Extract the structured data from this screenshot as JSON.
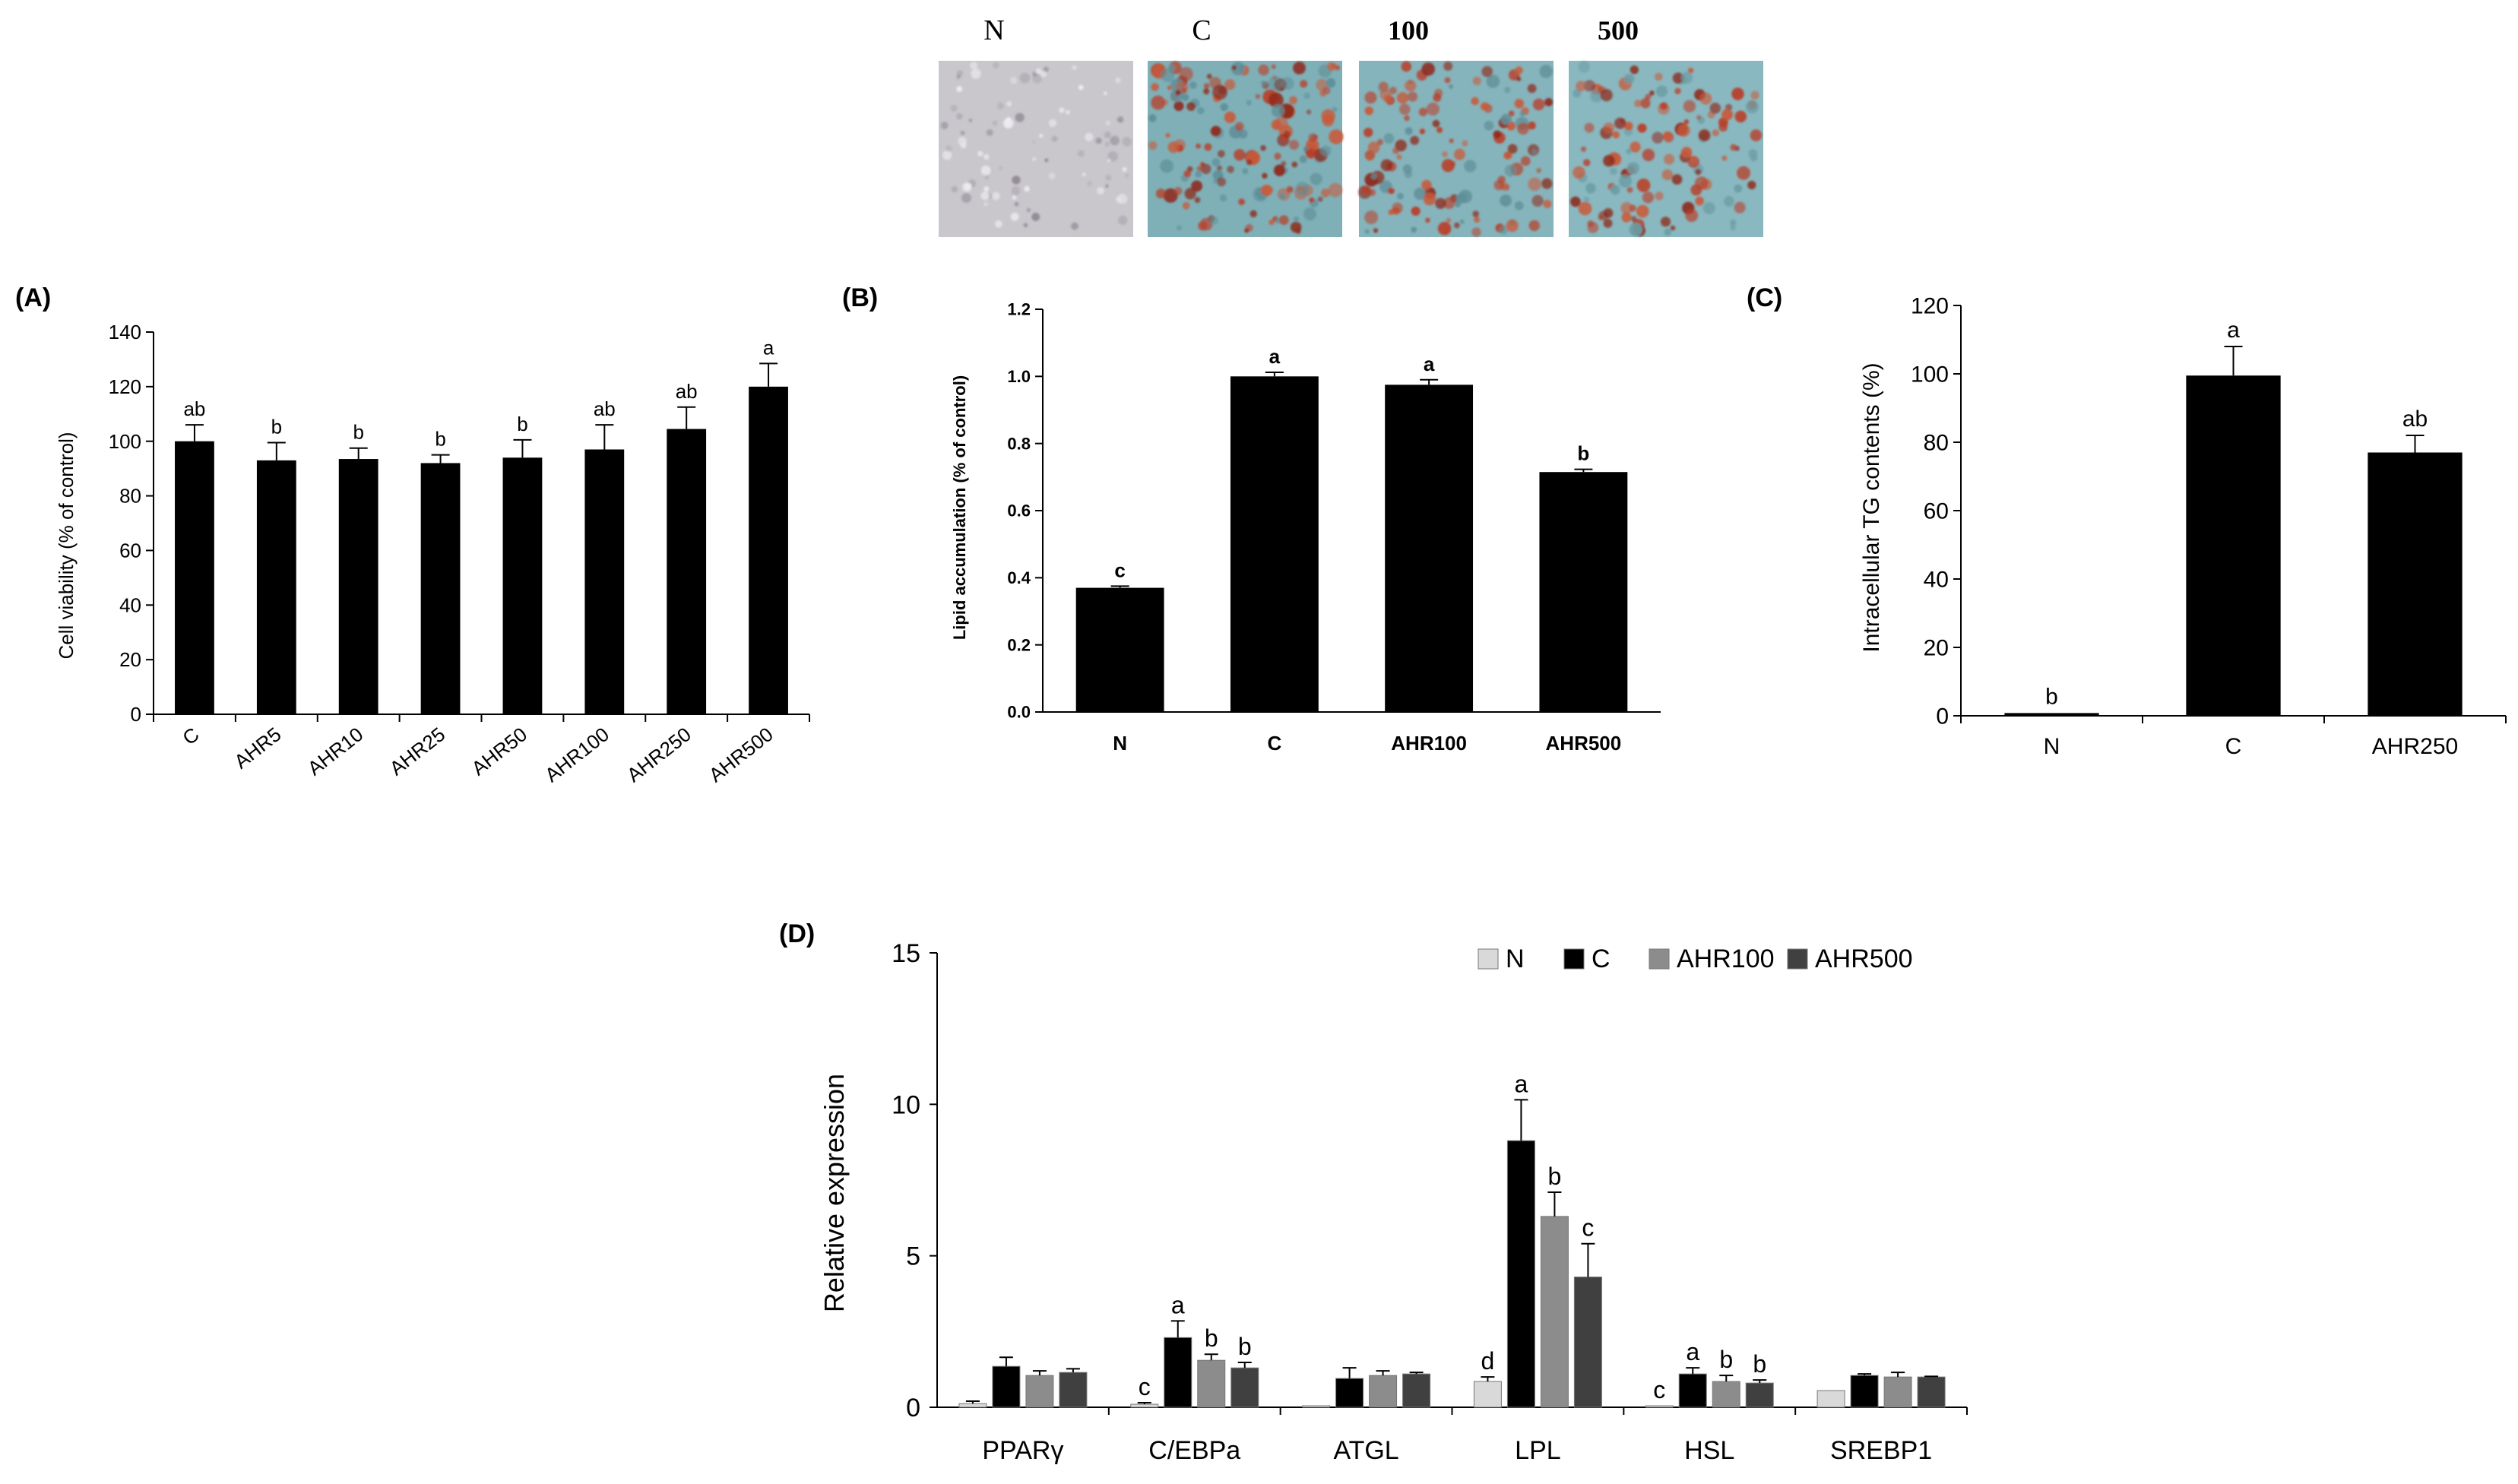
{
  "colors": {
    "black": "#000000",
    "N": "#d9d9d9",
    "C": "#000000",
    "AHR100": "#8c8c8c",
    "AHR500": "#404040",
    "micro_background_clear": "#c9c6cc",
    "micro_background_stained": "#7fb0b8",
    "micro_lipid_stain": "#b8402a"
  },
  "micrographs": {
    "labels": [
      "N",
      "C",
      "100",
      "500"
    ]
  },
  "chart_data": [
    {
      "panel": "(A)",
      "type": "bar",
      "title": "",
      "xlabel": "",
      "ylabel": "Cell viability  (% of control)",
      "ylim": [
        0,
        140
      ],
      "yticks": [
        0,
        20,
        40,
        60,
        80,
        100,
        120,
        140
      ],
      "ytick_labels": [
        "0",
        "20",
        "40",
        "60",
        "80",
        "100",
        "120",
        "140"
      ],
      "categories": [
        "C",
        "AHR5",
        "AHR10",
        "AHR25",
        "AHR50",
        "AHR100",
        "AHR250",
        "AHR500"
      ],
      "values": [
        100,
        93,
        93.5,
        92,
        94,
        97,
        104.5,
        120
      ],
      "errors": [
        6,
        6.5,
        4,
        3,
        6.5,
        9,
        8,
        8.5
      ],
      "labels": [
        "ab",
        "b",
        "b",
        "b",
        "b",
        "ab",
        "ab",
        "a"
      ],
      "grid": false
    },
    {
      "panel": "(B)",
      "type": "bar",
      "title": "",
      "xlabel": "",
      "ylabel": "Lipid accumulation (% of control)",
      "ylim": [
        0,
        1.2
      ],
      "yticks": [
        0,
        0.2,
        0.4,
        0.6,
        0.8,
        1.0,
        1.2
      ],
      "ytick_labels": [
        "0.0",
        "0.2",
        "0.4",
        "0.6",
        "0.8",
        "1.0",
        "1.2"
      ],
      "categories": [
        "N",
        "C",
        "AHR100",
        "AHR500"
      ],
      "values": [
        0.37,
        1.0,
        0.975,
        0.715
      ],
      "errors": [
        0.005,
        0.012,
        0.015,
        0.008
      ],
      "labels": [
        "c",
        "a",
        "a",
        "b"
      ],
      "grid": false
    },
    {
      "panel": "(C)",
      "type": "bar",
      "title": "",
      "xlabel": "",
      "ylabel": "Intracellular TG contents (%)",
      "ylim": [
        0,
        120
      ],
      "yticks": [
        0,
        20,
        40,
        60,
        80,
        100,
        120
      ],
      "ytick_labels": [
        "0",
        "20",
        "40",
        "60",
        "80",
        "100",
        "120"
      ],
      "categories": [
        "N",
        "C",
        "AHR250"
      ],
      "values": [
        0.8,
        99.5,
        77
      ],
      "errors": [
        0,
        8.5,
        5
      ],
      "labels": [
        "b",
        "a",
        "ab"
      ],
      "grid": false
    },
    {
      "panel": "(D)",
      "type": "bar",
      "title": "",
      "xlabel": "",
      "ylabel": "Relative expression",
      "ylim": [
        0,
        15
      ],
      "yticks": [
        0,
        5,
        10,
        15
      ],
      "ytick_labels": [
        "0",
        "5",
        "10",
        "15"
      ],
      "categories": [
        "PPARγ",
        "C/EBPa",
        "ATGL",
        "LPL",
        "HSL",
        "SREBP1"
      ],
      "legend": "top-right",
      "series": [
        {
          "name": "N",
          "values": [
            0.12,
            0.1,
            0.05,
            0.85,
            0.05,
            0.55
          ],
          "errors": [
            0.08,
            0.05,
            0,
            0.15,
            0,
            0
          ],
          "labels": [
            "",
            "c",
            "",
            "d",
            "c",
            ""
          ]
        },
        {
          "name": "C",
          "values": [
            1.35,
            2.3,
            0.95,
            8.8,
            1.1,
            1.05
          ],
          "errors": [
            0.3,
            0.55,
            0.35,
            1.35,
            0.2,
            0.05
          ],
          "labels": [
            "",
            "a",
            "",
            "a",
            "a",
            ""
          ]
        },
        {
          "name": "AHR100",
          "values": [
            1.05,
            1.55,
            1.05,
            6.3,
            0.85,
            1.0
          ],
          "errors": [
            0.15,
            0.2,
            0.15,
            0.8,
            0.2,
            0.15
          ],
          "labels": [
            "",
            "b",
            "",
            "b",
            "b",
            ""
          ]
        },
        {
          "name": "AHR500",
          "values": [
            1.15,
            1.3,
            1.1,
            4.3,
            0.8,
            1.0
          ],
          "errors": [
            0.12,
            0.18,
            0.05,
            1.1,
            0.1,
            0.02
          ],
          "labels": [
            "",
            "b",
            "",
            "c",
            "b",
            ""
          ]
        }
      ],
      "grid": false
    }
  ]
}
